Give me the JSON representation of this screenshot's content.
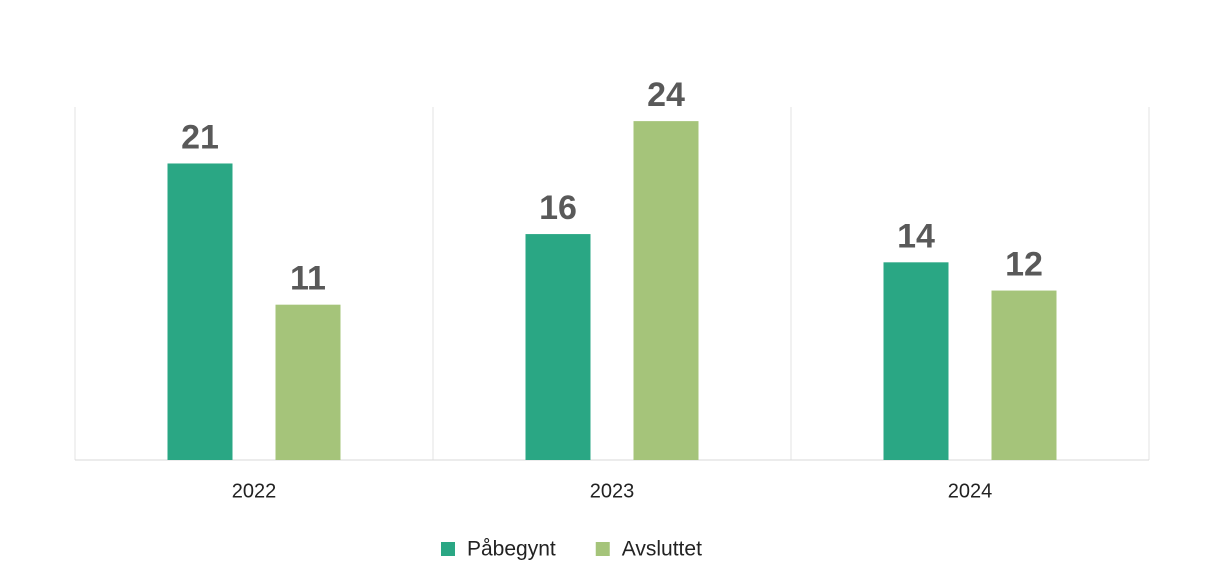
{
  "chart_data": {
    "type": "bar",
    "categories": [
      "2022",
      "2023",
      "2024"
    ],
    "series": [
      {
        "name": "Påbegynt",
        "color": "#2aa784",
        "values": [
          21,
          16,
          14
        ]
      },
      {
        "name": "Avsluttet",
        "color": "#a5c47a",
        "values": [
          11,
          24,
          12
        ]
      }
    ],
    "ylim": [
      0,
      25
    ],
    "legend": "bottom"
  }
}
